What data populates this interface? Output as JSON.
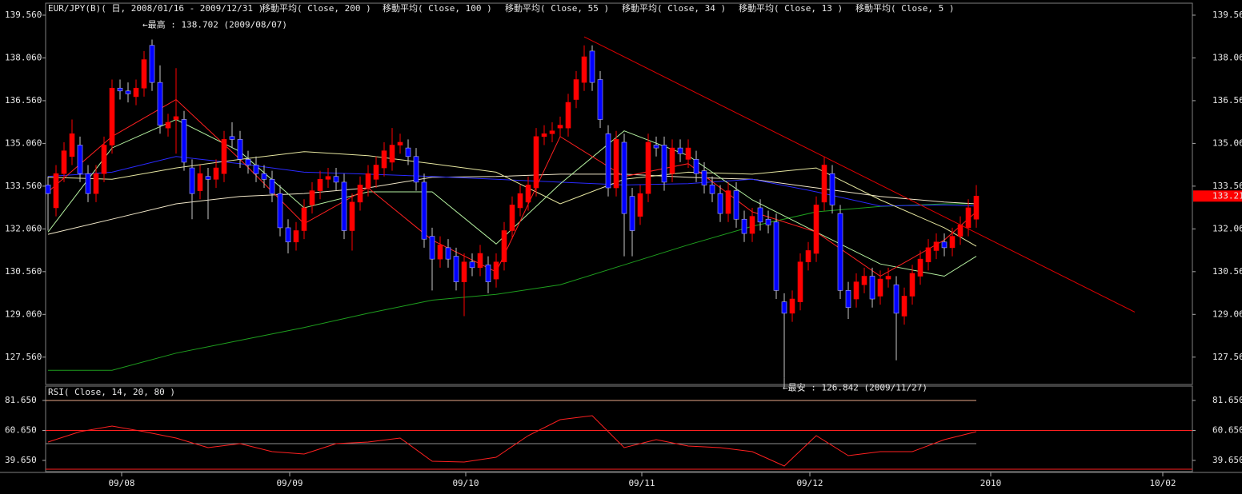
{
  "chart_data": {
    "type": "candlestick",
    "title": "EUR/JPY(B)( 日, 2008/01/16 - 2009/12/31 )",
    "up_color": "#ff0000",
    "down_color": "#0000ff",
    "open": [
      133.6,
      132.8,
      134.0,
      134.6,
      135.0,
      134.0,
      133.3,
      134.0,
      135.0,
      137.0,
      136.9,
      136.7,
      137.0,
      138.5,
      137.2,
      135.6,
      135.9,
      135.9,
      134.2,
      133.4,
      133.9,
      133.8,
      134.0,
      135.3,
      135.2,
      134.5,
      134.3,
      134.0,
      133.8,
      133.3,
      132.1,
      131.6,
      132.0,
      132.9,
      133.4,
      133.8,
      133.9,
      133.7,
      132.0,
      133.0,
      133.5,
      133.8,
      134.2,
      134.4,
      135.0,
      134.9,
      134.6,
      133.7,
      131.8,
      131.0,
      131.4,
      131.1,
      130.2,
      130.9,
      130.7,
      130.8,
      130.3,
      130.9,
      132.0,
      132.8,
      133.0,
      133.5,
      135.3,
      135.4,
      135.6,
      135.6,
      136.6,
      137.2,
      138.3,
      137.3,
      135.4,
      133.5,
      135.1,
      133.2,
      132.5,
      133.3,
      135.0,
      135.0,
      134.0,
      134.9,
      134.5,
      134.5,
      134.1,
      133.6,
      133.3,
      132.6,
      133.4,
      132.4,
      131.9,
      132.8,
      132.4,
      132.3,
      129.5,
      129.1,
      129.5,
      130.9,
      131.2,
      133.0,
      134.0,
      132.6,
      129.9,
      129.6,
      130.1,
      130.4,
      129.7,
      130.3,
      130.1,
      129.0,
      129.7,
      130.4,
      130.9,
      131.3,
      131.6,
      131.4,
      131.8,
      132.1,
      132.4
    ],
    "high": [
      133.9,
      134.3,
      135.1,
      135.9,
      135.3,
      134.3,
      134.3,
      135.3,
      137.3,
      137.3,
      137.2,
      137.3,
      138.3,
      138.702,
      137.8,
      136.1,
      137.7,
      136.2,
      134.5,
      134.3,
      134.2,
      134.5,
      135.5,
      135.8,
      135.5,
      134.8,
      134.6,
      134.3,
      134.1,
      133.6,
      132.4,
      132.3,
      133.1,
      133.7,
      134.1,
      134.2,
      134.2,
      134.0,
      133.3,
      133.9,
      134.3,
      134.6,
      135.1,
      135.6,
      135.4,
      135.2,
      134.9,
      134.0,
      132.1,
      131.8,
      131.7,
      131.4,
      131.2,
      131.2,
      131.5,
      131.1,
      131.2,
      132.3,
      133.2,
      133.6,
      133.9,
      135.6,
      135.7,
      135.8,
      136.0,
      136.8,
      137.6,
      138.5,
      138.5,
      137.6,
      135.7,
      135.5,
      135.4,
      133.5,
      133.6,
      135.4,
      135.3,
      135.3,
      135.2,
      135.2,
      135.2,
      134.8,
      134.4,
      133.9,
      133.6,
      133.7,
      133.7,
      132.7,
      132.8,
      133.1,
      132.7,
      132.6,
      129.8,
      129.9,
      131.2,
      131.6,
      133.2,
      134.6,
      134.3,
      132.9,
      130.2,
      130.5,
      130.7,
      130.7,
      130.6,
      130.7,
      130.4,
      130.0,
      130.8,
      131.3,
      131.7,
      131.9,
      131.9,
      132.1,
      132.5,
      133.1,
      133.6
    ],
    "low": [
      132.0,
      132.5,
      133.7,
      134.3,
      133.7,
      133.0,
      133.0,
      133.7,
      134.7,
      136.6,
      136.5,
      136.4,
      136.7,
      136.9,
      135.4,
      135.3,
      134.7,
      134.1,
      132.4,
      133.1,
      132.4,
      133.5,
      133.7,
      134.9,
      134.2,
      134.0,
      133.7,
      133.5,
      133.0,
      131.8,
      131.2,
      131.3,
      131.7,
      132.6,
      133.1,
      133.5,
      133.4,
      131.7,
      131.3,
      132.7,
      133.2,
      133.5,
      133.9,
      134.1,
      134.7,
      134.3,
      133.4,
      131.4,
      129.9,
      130.7,
      130.7,
      129.9,
      129.0,
      130.4,
      130.4,
      129.8,
      130.0,
      130.6,
      131.7,
      132.5,
      132.7,
      133.2,
      135.0,
      135.1,
      135.3,
      135.3,
      136.3,
      136.9,
      136.9,
      135.6,
      133.2,
      133.2,
      131.1,
      131.1,
      132.2,
      133.0,
      134.6,
      133.4,
      133.7,
      134.4,
      134.2,
      133.7,
      133.3,
      133.0,
      132.3,
      132.3,
      132.1,
      131.6,
      131.6,
      132.0,
      131.9,
      129.6,
      126.842,
      128.8,
      129.2,
      130.6,
      130.9,
      132.7,
      132.6,
      129.6,
      128.9,
      129.3,
      129.8,
      129.3,
      129.4,
      130.0,
      127.45,
      128.7,
      129.4,
      130.1,
      130.6,
      131.0,
      131.1,
      131.1,
      131.5,
      131.8,
      132.1
    ],
    "close": [
      133.3,
      134.0,
      134.8,
      135.4,
      134.0,
      133.3,
      134.0,
      135.0,
      137.0,
      136.9,
      136.8,
      137.0,
      138.0,
      137.2,
      135.7,
      135.8,
      136.0,
      134.4,
      133.3,
      134.0,
      133.8,
      134.2,
      135.2,
      135.2,
      134.5,
      134.3,
      134.0,
      133.8,
      133.3,
      132.1,
      131.6,
      132.0,
      132.8,
      133.4,
      133.8,
      133.9,
      133.7,
      132.0,
      133.0,
      133.6,
      134.0,
      134.3,
      134.8,
      135.0,
      135.1,
      134.6,
      133.7,
      131.7,
      131.0,
      131.5,
      131.0,
      130.2,
      130.9,
      130.7,
      131.2,
      130.2,
      130.9,
      132.0,
      132.9,
      133.3,
      133.6,
      135.3,
      135.4,
      135.5,
      135.7,
      136.5,
      137.3,
      138.1,
      137.2,
      135.9,
      133.5,
      135.2,
      132.6,
      132.0,
      133.3,
      135.1,
      134.9,
      133.7,
      134.9,
      134.7,
      134.9,
      134.0,
      133.6,
      133.3,
      132.6,
      133.4,
      132.4,
      131.9,
      132.5,
      132.3,
      132.2,
      129.9,
      129.1,
      129.6,
      130.9,
      131.3,
      132.9,
      134.3,
      132.9,
      129.9,
      129.3,
      130.2,
      130.4,
      129.6,
      130.3,
      130.4,
      129.1,
      129.7,
      130.5,
      131.0,
      131.4,
      131.6,
      131.4,
      131.8,
      132.2,
      132.8,
      133.212
    ],
    "series": [
      {
        "name": "移動平均( Close, 200 )",
        "color": "#1e9e1e",
        "x": [
          0,
          8,
          16,
          24,
          32,
          40,
          48,
          56,
          64,
          72,
          80,
          88,
          96,
          104,
          112,
          116
        ],
        "values": [
          127.1,
          127.1,
          127.7,
          128.15,
          128.6,
          129.1,
          129.56,
          129.76,
          130.1,
          130.8,
          131.5,
          132.15,
          132.66,
          132.85,
          132.94,
          132.94
        ]
      },
      {
        "name": "移動平均( Close, 100 )",
        "color": "#f0e6c8",
        "x": [
          0,
          8,
          16,
          24,
          32,
          40,
          48,
          56,
          64,
          72,
          80,
          88,
          96,
          104,
          112,
          116
        ],
        "values": [
          131.87,
          132.4,
          132.94,
          133.2,
          133.3,
          133.5,
          133.87,
          133.9,
          133.98,
          133.98,
          133.87,
          133.8,
          133.5,
          133.2,
          133.0,
          132.94
        ]
      },
      {
        "name": "移動平均( Close, 55 )",
        "color": "#2a2aff",
        "x": [
          0,
          8,
          16,
          24,
          32,
          40,
          48,
          56,
          64,
          72,
          80,
          88,
          96,
          104,
          112,
          116
        ],
        "values": [
          133.9,
          134.05,
          134.6,
          134.35,
          134.05,
          133.98,
          133.9,
          133.8,
          133.7,
          133.6,
          133.65,
          133.8,
          133.36,
          132.86,
          132.9,
          132.86
        ]
      },
      {
        "name": "移動平均( Close, 34 )",
        "color": "#e6e6a0",
        "x": [
          0,
          8,
          16,
          24,
          32,
          40,
          48,
          56,
          64,
          72,
          80,
          88,
          96,
          104,
          112,
          116
        ],
        "values": [
          133.87,
          133.8,
          134.2,
          134.5,
          134.77,
          134.63,
          134.35,
          134.05,
          132.94,
          133.8,
          134.05,
          133.98,
          134.2,
          133.08,
          132.1,
          131.45
        ]
      },
      {
        "name": "移動平均( Close, 13 )",
        "color": "#b4f0a0",
        "x": [
          0,
          8,
          16,
          24,
          32,
          40,
          48,
          56,
          64,
          72,
          80,
          88,
          96,
          104,
          112,
          116
        ],
        "values": [
          131.95,
          134.9,
          135.9,
          134.77,
          132.8,
          133.36,
          133.36,
          131.53,
          133.64,
          135.5,
          134.63,
          133.08,
          131.95,
          130.83,
          130.4,
          131.1
        ]
      },
      {
        "name": "移動平均( Close, 5 )",
        "color": "#ff2020",
        "x": [
          0,
          8,
          16,
          24,
          32,
          40,
          48,
          56,
          64,
          72,
          80,
          88,
          96,
          104,
          112,
          116
        ],
        "values": [
          133.36,
          135.3,
          136.6,
          134.5,
          132.24,
          133.5,
          131.67,
          130.55,
          135.3,
          133.9,
          134.35,
          132.66,
          131.95,
          130.4,
          131.67,
          132.66
        ]
      }
    ],
    "trendline": {
      "color": "#e00000",
      "x": [
        67,
        135.8
      ],
      "values": [
        138.8,
        129.14
      ]
    },
    "annotations": [
      "←最高 : 138.702 (2009/08/07)",
      "←最安 : 126.842 (2009/11/27)"
    ],
    "xlim": [
      -0.3,
      143
    ],
    "xticks": [
      {
        "value": 9.2,
        "label": "09/08"
      },
      {
        "value": 30.2,
        "label": "09/09"
      },
      {
        "value": 52.2,
        "label": "09/10"
      },
      {
        "value": 74.2,
        "label": "09/11"
      },
      {
        "value": 95.2,
        "label": "09/12"
      },
      {
        "value": 117.8,
        "label": "2010"
      },
      {
        "value": 139.3,
        "label": "10/02"
      }
    ],
    "ylim": [
      126.6,
      139.98
    ],
    "yticks": [
      {
        "value": 139.56,
        "label": "139.560"
      },
      {
        "value": 138.06,
        "label": "138.060"
      },
      {
        "value": 136.56,
        "label": "136.560"
      },
      {
        "value": 135.06,
        "label": "135.060"
      },
      {
        "value": 133.56,
        "label": "133.560"
      },
      {
        "value": 132.06,
        "label": "132.060"
      },
      {
        "value": 130.56,
        "label": "130.560"
      },
      {
        "value": 129.06,
        "label": "129.060"
      },
      {
        "value": 127.56,
        "label": "127.560"
      }
    ],
    "rsi": {
      "title": "RSI( Close, 14, 20, 80 )",
      "color": "#ff2020",
      "x": [
        0,
        4,
        8,
        12,
        16,
        20,
        24,
        28,
        32,
        36,
        40,
        44,
        48,
        52,
        56,
        60,
        64,
        68,
        72,
        76,
        80,
        84,
        88,
        92,
        96,
        100,
        104,
        108,
        112,
        116
      ],
      "values": [
        52.5,
        59.8,
        63.7,
        59.8,
        55.3,
        48.6,
        51.4,
        45.8,
        44.1,
        51.4,
        52.5,
        55.3,
        39.1,
        38.5,
        41.9,
        57,
        68.2,
        71,
        48.6,
        54.2,
        49.7,
        48.6,
        45.8,
        35.7,
        57,
        43,
        45.8,
        45.8,
        54.2,
        59.8
      ],
      "levels": [
        81.65,
        60.65,
        51.4,
        33.5
      ],
      "level_colors": [
        "#e8a888",
        "#ff2020",
        "#909090",
        "#ff2020"
      ],
      "ylim": [
        31.8,
        91.7
      ],
      "yticks": [
        {
          "value": 81.65,
          "label": "81.650"
        },
        {
          "value": 60.65,
          "label": "60.650"
        },
        {
          "value": 39.65,
          "label": "39.650"
        }
      ]
    }
  }
}
